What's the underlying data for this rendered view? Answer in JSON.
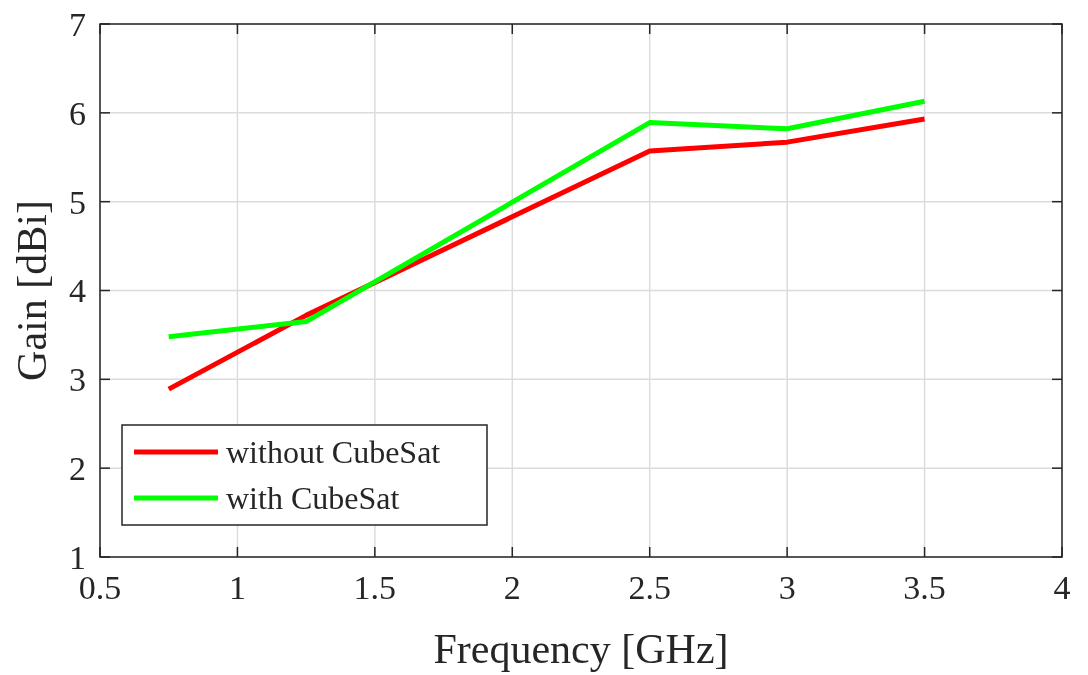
{
  "chart_data": {
    "type": "line",
    "xlabel": "Frequency [GHz]",
    "ylabel": "Gain [dBi]",
    "xlim": [
      0.5,
      4
    ],
    "xticks": [
      0.5,
      1,
      1.5,
      2,
      2.5,
      3,
      3.5,
      4
    ],
    "ylim": [
      1,
      7
    ],
    "yticks": [
      1,
      2,
      3,
      4,
      5,
      6,
      7
    ],
    "grid": true,
    "legend": "bottom left",
    "series": [
      {
        "name": "without CubeSat",
        "color": "#ff0000",
        "x": [
          0.75,
          1.25,
          2.5,
          3,
          3.5
        ],
        "values": [
          2.89,
          3.72,
          5.57,
          5.67,
          5.93
        ]
      },
      {
        "name": "with CubeSat",
        "color": "#00ff00",
        "x": [
          0.75,
          1.25,
          2.5,
          3,
          3.5
        ],
        "values": [
          3.48,
          3.65,
          5.89,
          5.82,
          6.13
        ]
      }
    ]
  }
}
